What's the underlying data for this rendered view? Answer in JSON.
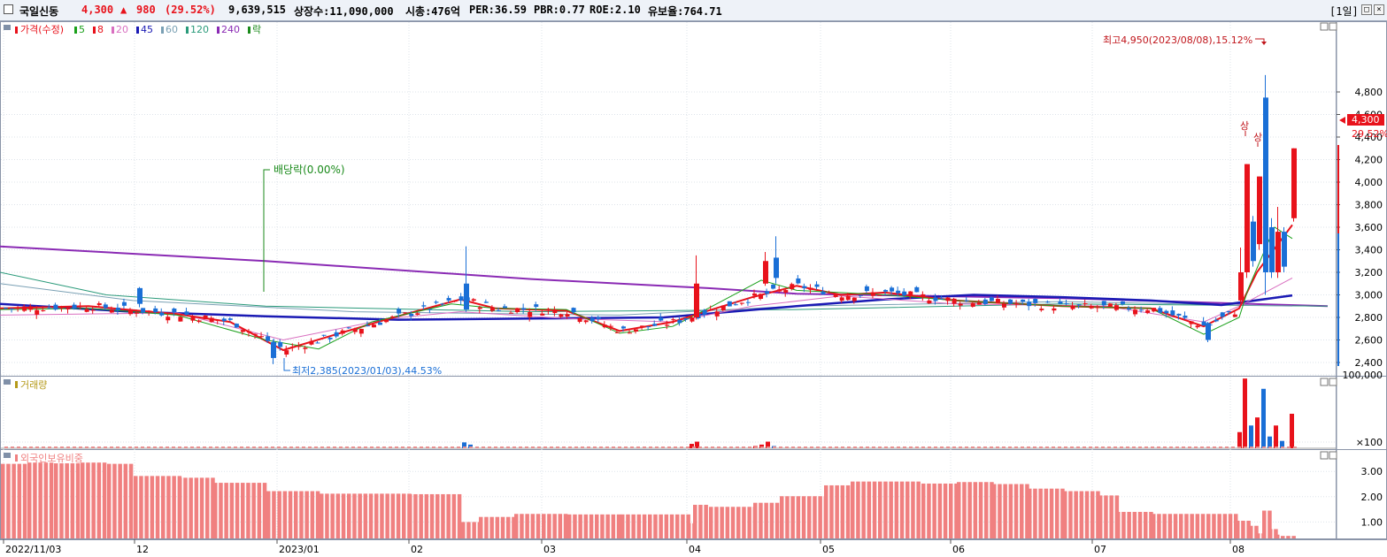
{
  "header": {
    "name": "국일신동",
    "price": "4,300",
    "change_arrow": "▲",
    "change": "980",
    "change_pct": "(29.52%)",
    "volume": "9,639,515",
    "shares": "상장수:11,090,000",
    "mktcap": "시총:476억",
    "per": "PER:36.59",
    "pbr": "PBR:0.77",
    "roe": "ROE:2.10",
    "float_ratio": "유보율:764.71",
    "period": "[1일]",
    "colors": {
      "up": "#e8121b",
      "down": "#1a6fd6",
      "green": "#1a8a1a"
    }
  },
  "price_panel": {
    "legend": {
      "title": "가격(수정)",
      "ma": [
        {
          "label": "5",
          "color": "#1aa01a"
        },
        {
          "label": "8",
          "color": "#e8121b"
        },
        {
          "label": "20",
          "color": "#d96fc0"
        },
        {
          "label": "45",
          "color": "#1a1ab4"
        },
        {
          "label": "60",
          "color": "#7aa0b4"
        },
        {
          "label": "120",
          "color": "#2a9a7a"
        },
        {
          "label": "240",
          "color": "#8a2ab4"
        }
      ],
      "extra": "락"
    },
    "annot_high": "최고4,950(2023/08/08),15.12%",
    "annot_low": "최저2,385(2023/01/03),44.53%",
    "annot_dividend": "배당락(0.00%)",
    "limit_up_1": "상",
    "limit_up_2": "상",
    "last_price_tag": "4,300",
    "last_pct_tag": "29.52%"
  },
  "volume_panel": {
    "title": "거래량"
  },
  "foreign_panel": {
    "title": "외국인보유비중"
  },
  "chart_data": [
    {
      "type": "candlestick",
      "title": "",
      "y_ticks": [
        "2,400",
        "2,600",
        "2,800",
        "3,000",
        "3,200",
        "3,400",
        "3,600",
        "3,800",
        "4,000",
        "4,200",
        "4,400",
        "4,600",
        "4,800"
      ],
      "ylim": [
        2300,
        5010
      ],
      "x_ticks": [
        "2022/11/03",
        "12",
        "2023/01",
        "02",
        "03",
        "04",
        "05",
        "06",
        "07",
        "08"
      ],
      "high": {
        "value": 4950,
        "date": "2023/08/08"
      },
      "low": {
        "value": 2385,
        "date": "2023/01/03"
      },
      "series": [
        {
          "name": "240",
          "color": "#8a2ab4",
          "points": [
            [
              0,
              3430
            ],
            [
              300,
              3300
            ],
            [
              600,
              3140
            ],
            [
              800,
              3060
            ],
            [
              900,
              3010
            ],
            [
              1200,
              2970
            ],
            [
              1500,
              2900
            ]
          ]
        },
        {
          "name": "120",
          "color": "#2a9a7a",
          "points": [
            [
              0,
              3200
            ],
            [
              120,
              3000
            ],
            [
              300,
              2900
            ],
            [
              600,
              2850
            ],
            [
              900,
              2870
            ],
            [
              1200,
              2920
            ],
            [
              1500,
              2900
            ]
          ]
        },
        {
          "name": "60",
          "color": "#7aa0b4",
          "points": [
            [
              0,
              3100
            ],
            [
              150,
              2950
            ],
            [
              400,
              2850
            ],
            [
              700,
              2820
            ],
            [
              900,
              2900
            ],
            [
              1200,
              2940
            ],
            [
              1460,
              2900
            ]
          ]
        },
        {
          "name": "45",
          "color": "#1a1ab4",
          "points": [
            [
              0,
              2920
            ],
            [
              150,
              2850
            ],
            [
              300,
              2810
            ],
            [
              450,
              2780
            ],
            [
              600,
              2790
            ],
            [
              750,
              2800
            ],
            [
              900,
              2900
            ],
            [
              1000,
              2960
            ],
            [
              1100,
              3000
            ],
            [
              1200,
              2980
            ],
            [
              1300,
              2950
            ],
            [
              1380,
              2910
            ],
            [
              1460,
              2995
            ]
          ]
        },
        {
          "name": "20",
          "color": "#d96fc0",
          "points": [
            [
              0,
              2820
            ],
            [
              200,
              2840
            ],
            [
              320,
              2600
            ],
            [
              440,
              2790
            ],
            [
              520,
              2850
            ],
            [
              640,
              2790
            ],
            [
              760,
              2760
            ],
            [
              850,
              2900
            ],
            [
              950,
              2990
            ],
            [
              1080,
              2920
            ],
            [
              1250,
              2900
            ],
            [
              1360,
              2760
            ],
            [
              1400,
              2900
            ],
            [
              1460,
              3150
            ]
          ]
        },
        {
          "name": "8",
          "color": "#e8121b",
          "points": [
            [
              0,
              2880
            ],
            [
              100,
              2900
            ],
            [
              200,
              2830
            ],
            [
              260,
              2760
            ],
            [
              320,
              2510
            ],
            [
              380,
              2650
            ],
            [
              440,
              2790
            ],
            [
              520,
              2960
            ],
            [
              560,
              2880
            ],
            [
              640,
              2860
            ],
            [
              700,
              2680
            ],
            [
              760,
              2760
            ],
            [
              800,
              2860
            ],
            [
              850,
              2980
            ],
            [
              900,
              3080
            ],
            [
              950,
              3000
            ],
            [
              1000,
              3020
            ],
            [
              1080,
              2950
            ],
            [
              1200,
              2900
            ],
            [
              1300,
              2880
            ],
            [
              1360,
              2720
            ],
            [
              1400,
              2880
            ],
            [
              1420,
              3200
            ],
            [
              1460,
              3620
            ]
          ]
        },
        {
          "name": "5",
          "color": "#1aa01a",
          "points": [
            [
              0,
              2870
            ],
            [
              100,
              2880
            ],
            [
              200,
              2820
            ],
            [
              300,
              2600
            ],
            [
              360,
              2520
            ],
            [
              420,
              2760
            ],
            [
              510,
              2920
            ],
            [
              560,
              2880
            ],
            [
              640,
              2870
            ],
            [
              700,
              2660
            ],
            [
              760,
              2720
            ],
            [
              800,
              2880
            ],
            [
              860,
              3130
            ],
            [
              900,
              3040
            ],
            [
              1000,
              3000
            ],
            [
              1080,
              2950
            ],
            [
              1200,
              2900
            ],
            [
              1300,
              2880
            ],
            [
              1360,
              2650
            ],
            [
              1400,
              2800
            ],
            [
              1410,
              3050
            ],
            [
              1440,
              3600
            ],
            [
              1460,
              3500
            ]
          ]
        }
      ]
    },
    {
      "type": "bar",
      "title": "거래량",
      "y_ticks": [
        "100,000",
        "×100"
      ],
      "bars": [
        {
          "x": 524,
          "value": 8000,
          "color": "#1a6fd6"
        },
        {
          "x": 531,
          "value": 5000,
          "color": "#1a6fd6"
        },
        {
          "x": 781,
          "value": 6000,
          "color": "#e8121b"
        },
        {
          "x": 787,
          "value": 9000,
          "color": "#e8121b"
        },
        {
          "x": 853,
          "value": 3000,
          "color": "#e8121b"
        },
        {
          "x": 860,
          "value": 5000,
          "color": "#e8121b"
        },
        {
          "x": 867,
          "value": 9000,
          "color": "#e8121b"
        },
        {
          "x": 874,
          "value": 3000,
          "color": "#1a6fd6"
        },
        {
          "x": 1400,
          "value": 22000,
          "color": "#e8121b"
        },
        {
          "x": 1406,
          "value": 95000,
          "color": "#e8121b"
        },
        {
          "x": 1413,
          "value": 31000,
          "color": "#1a6fd6"
        },
        {
          "x": 1420,
          "value": 42000,
          "color": "#e8121b"
        },
        {
          "x": 1427,
          "value": 81000,
          "color": "#1a6fd6"
        },
        {
          "x": 1434,
          "value": 16000,
          "color": "#1a6fd6"
        },
        {
          "x": 1441,
          "value": 31000,
          "color": "#e8121b"
        },
        {
          "x": 1448,
          "value": 10000,
          "color": "#1a6fd6"
        },
        {
          "x": 1459,
          "value": 47000,
          "color": "#e8121b"
        }
      ]
    },
    {
      "type": "bar",
      "title": "외국인보유비중",
      "y_ticks": [
        "1.00",
        "2.00",
        "3.00"
      ],
      "ylim": [
        0.35,
        3.6
      ],
      "color": "#f08080",
      "segments": [
        [
          0,
          30,
          3.3
        ],
        [
          30,
          60,
          3.35
        ],
        [
          60,
          90,
          3.32
        ],
        [
          90,
          120,
          3.35
        ],
        [
          120,
          150,
          3.3
        ],
        [
          150,
          200,
          2.82
        ],
        [
          200,
          240,
          2.75
        ],
        [
          240,
          300,
          2.55
        ],
        [
          300,
          360,
          2.22
        ],
        [
          360,
          460,
          2.12
        ],
        [
          460,
          520,
          2.1
        ],
        [
          520,
          540,
          1.0
        ],
        [
          540,
          580,
          1.2
        ],
        [
          580,
          640,
          1.32
        ],
        [
          640,
          700,
          1.3
        ],
        [
          700,
          775,
          1.3
        ],
        [
          775,
          782,
          0.95
        ],
        [
          782,
          800,
          1.68
        ],
        [
          800,
          850,
          1.6
        ],
        [
          850,
          880,
          1.76
        ],
        [
          880,
          930,
          2.02
        ],
        [
          930,
          960,
          2.45
        ],
        [
          960,
          1040,
          2.6
        ],
        [
          1040,
          1080,
          2.52
        ],
        [
          1080,
          1120,
          2.58
        ],
        [
          1120,
          1160,
          2.5
        ],
        [
          1160,
          1200,
          2.32
        ],
        [
          1200,
          1240,
          2.22
        ],
        [
          1240,
          1260,
          2.05
        ],
        [
          1260,
          1300,
          1.4
        ],
        [
          1300,
          1395,
          1.32
        ],
        [
          1395,
          1410,
          1.05
        ],
        [
          1410,
          1418,
          0.85
        ],
        [
          1418,
          1425,
          0.55
        ],
        [
          1425,
          1432,
          1.45
        ],
        [
          1432,
          1440,
          0.72
        ],
        [
          1440,
          1446,
          0.5
        ],
        [
          1446,
          1462,
          0.45
        ]
      ]
    }
  ]
}
